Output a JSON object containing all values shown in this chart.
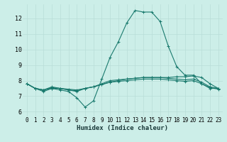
{
  "xlabel": "Humidex (Indice chaleur)",
  "background_color": "#cceee8",
  "grid_color": "#b0d8d2",
  "line_color": "#1a7a6e",
  "xlim": [
    -0.5,
    23.5
  ],
  "ylim": [
    5.7,
    12.9
  ],
  "yticks": [
    6,
    7,
    8,
    9,
    10,
    11,
    12
  ],
  "xticks": [
    0,
    1,
    2,
    3,
    4,
    5,
    6,
    7,
    8,
    9,
    10,
    11,
    12,
    13,
    14,
    15,
    16,
    17,
    18,
    19,
    20,
    21,
    22,
    23
  ],
  "series": [
    [
      7.8,
      7.5,
      7.3,
      7.5,
      7.4,
      7.3,
      6.9,
      6.3,
      6.7,
      8.1,
      9.5,
      10.5,
      11.7,
      12.5,
      12.4,
      12.4,
      11.8,
      10.2,
      8.9,
      8.35,
      8.35,
      7.8,
      7.5,
      7.5
    ],
    [
      7.8,
      7.5,
      7.4,
      7.5,
      7.5,
      7.4,
      7.3,
      7.5,
      7.6,
      7.75,
      7.9,
      8.0,
      8.1,
      8.15,
      8.2,
      8.2,
      8.2,
      8.2,
      8.25,
      8.25,
      8.3,
      8.2,
      7.8,
      7.5
    ],
    [
      7.8,
      7.5,
      7.4,
      7.55,
      7.5,
      7.4,
      7.35,
      7.5,
      7.6,
      7.8,
      8.0,
      8.05,
      8.1,
      8.15,
      8.2,
      8.2,
      8.2,
      8.15,
      8.1,
      8.05,
      8.1,
      7.9,
      7.6,
      7.5
    ],
    [
      7.8,
      7.5,
      7.4,
      7.6,
      7.5,
      7.45,
      7.4,
      7.5,
      7.6,
      7.75,
      7.9,
      7.95,
      8.0,
      8.05,
      8.1,
      8.1,
      8.1,
      8.05,
      8.0,
      7.95,
      8.0,
      7.8,
      7.55,
      7.45
    ]
  ]
}
